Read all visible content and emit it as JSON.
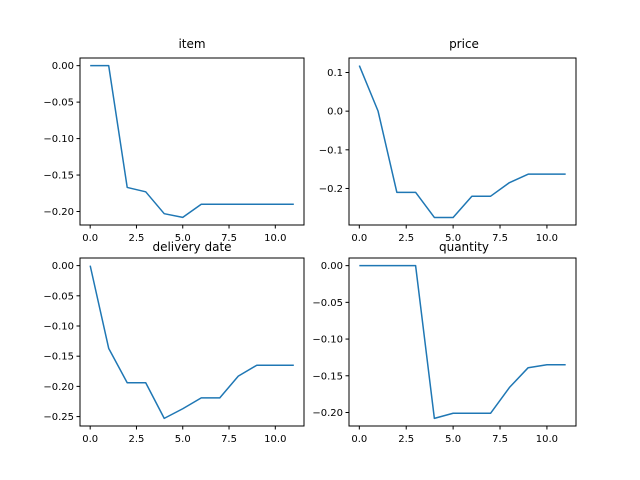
{
  "chart_data": [
    {
      "type": "line",
      "title": "item",
      "x": [
        0,
        1,
        2,
        3,
        4,
        5,
        6,
        7,
        8,
        9,
        10,
        11
      ],
      "series": [
        {
          "values": [
            0.0,
            0.0,
            -0.167,
            -0.173,
            -0.203,
            -0.208,
            -0.19,
            -0.19,
            -0.19,
            -0.19,
            -0.19,
            -0.19
          ]
        }
      ],
      "xlim": [
        -0.55,
        11.55
      ],
      "ylim": [
        -0.2185,
        0.0105
      ],
      "xticks": [
        0.0,
        2.5,
        5.0,
        7.5,
        10.0
      ],
      "xtick_labels": [
        "0.0",
        "2.5",
        "5.0",
        "7.5",
        "10.0"
      ],
      "yticks": [
        0.0,
        -0.05,
        -0.1,
        -0.15,
        -0.2
      ],
      "ytick_labels": [
        "0.00",
        "−0.05",
        "−0.10",
        "−0.15",
        "−0.20"
      ],
      "grid": false
    },
    {
      "type": "line",
      "title": "price",
      "x": [
        0,
        1,
        2,
        3,
        4,
        5,
        6,
        7,
        8,
        9,
        10,
        11
      ],
      "series": [
        {
          "values": [
            0.118,
            0.0,
            -0.21,
            -0.21,
            -0.275,
            -0.275,
            -0.22,
            -0.22,
            -0.185,
            -0.163,
            -0.163,
            -0.163
          ]
        }
      ],
      "xlim": [
        -0.55,
        11.55
      ],
      "ylim": [
        -0.2945,
        0.1375
      ],
      "xticks": [
        0.0,
        2.5,
        5.0,
        7.5,
        10.0
      ],
      "xtick_labels": [
        "0.0",
        "2.5",
        "5.0",
        "7.5",
        "10.0"
      ],
      "yticks": [
        0.1,
        0.0,
        -0.1,
        -0.2
      ],
      "ytick_labels": [
        "0.1",
        "0.0",
        "−0.1",
        "−0.2"
      ],
      "grid": false
    },
    {
      "type": "line",
      "title": "delivery date",
      "x": [
        0,
        1,
        2,
        3,
        4,
        5,
        6,
        7,
        8,
        9,
        10,
        11
      ],
      "series": [
        {
          "values": [
            0.0,
            -0.137,
            -0.194,
            -0.194,
            -0.253,
            -0.237,
            -0.219,
            -0.219,
            -0.183,
            -0.165,
            -0.165,
            -0.165
          ]
        }
      ],
      "xlim": [
        -0.55,
        11.55
      ],
      "ylim": [
        -0.2656,
        0.0126
      ],
      "xticks": [
        0.0,
        2.5,
        5.0,
        7.5,
        10.0
      ],
      "xtick_labels": [
        "0.0",
        "2.5",
        "5.0",
        "7.5",
        "10.0"
      ],
      "yticks": [
        0.0,
        -0.05,
        -0.1,
        -0.15,
        -0.2,
        -0.25
      ],
      "ytick_labels": [
        "0.00",
        "−0.05",
        "−0.10",
        "−0.15",
        "−0.20",
        "−0.25"
      ],
      "grid": false
    },
    {
      "type": "line",
      "title": "quantity",
      "x": [
        0,
        1,
        2,
        3,
        4,
        5,
        6,
        7,
        8,
        9,
        10,
        11
      ],
      "series": [
        {
          "values": [
            0.0,
            0.0,
            0.0,
            0.0,
            -0.208,
            -0.201,
            -0.201,
            -0.201,
            -0.166,
            -0.139,
            -0.135,
            -0.135
          ]
        }
      ],
      "xlim": [
        -0.55,
        11.55
      ],
      "ylim": [
        -0.2184,
        0.0104
      ],
      "xticks": [
        0.0,
        2.5,
        5.0,
        7.5,
        10.0
      ],
      "xtick_labels": [
        "0.0",
        "2.5",
        "5.0",
        "7.5",
        "10.0"
      ],
      "yticks": [
        0.0,
        -0.05,
        -0.1,
        -0.15,
        -0.2
      ],
      "ytick_labels": [
        "0.00",
        "−0.05",
        "−0.10",
        "−0.15",
        "−0.20"
      ],
      "grid": false
    }
  ],
  "colors": {
    "line": "#1f77b4",
    "axes": "#000000",
    "background": "#ffffff"
  }
}
